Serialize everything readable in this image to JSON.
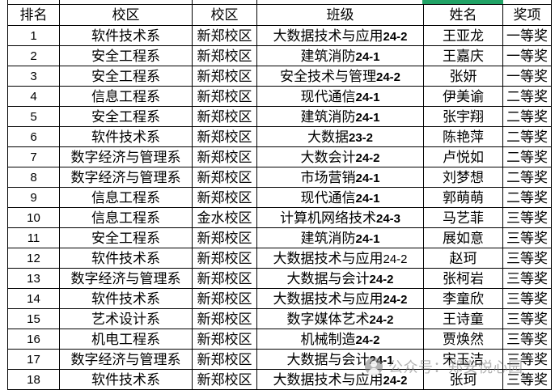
{
  "selection": {
    "color": "#21a366"
  },
  "table": {
    "headers": [
      "排名",
      "校区",
      "校区",
      "班级",
      "姓名",
      "奖项"
    ],
    "rows": [
      {
        "rank": "1",
        "dept": "软件技术系",
        "campus": "新郑校区",
        "class_name": "大数据技术与应用24-2",
        "name": "王亚龙",
        "award": "一等奖",
        "bold_digits": true
      },
      {
        "rank": "2",
        "dept": "安全工程系",
        "campus": "新郑校区",
        "class_name": "建筑消防24-1",
        "name": "王嘉庆",
        "award": "一等奖",
        "bold_digits": true
      },
      {
        "rank": "3",
        "dept": "安全工程系",
        "campus": "新郑校区",
        "class_name": "安全技术与管理24-2",
        "name": "张妍",
        "award": "一等奖",
        "bold_digits": true
      },
      {
        "rank": "4",
        "dept": "信息工程系",
        "campus": "新郑校区",
        "class_name": "现代通信24-1",
        "name": "伊美谕",
        "award": "二等奖",
        "bold_digits": true
      },
      {
        "rank": "5",
        "dept": "安全工程系",
        "campus": "新郑校区",
        "class_name": "建筑消防24-1",
        "name": "张宇翔",
        "award": "二等奖",
        "bold_digits": true
      },
      {
        "rank": "6",
        "dept": "软件技术系",
        "campus": "新郑校区",
        "class_name": "大数据23-2",
        "name": "陈艳萍",
        "award": "二等奖",
        "bold_digits": true
      },
      {
        "rank": "7",
        "dept": "数字经济与管理系",
        "campus": "新郑校区",
        "class_name": "大数会计24-2",
        "name": "卢悦如",
        "award": "二等奖",
        "bold_digits": true
      },
      {
        "rank": "8",
        "dept": "数字经济与管理系",
        "campus": "新郑校区",
        "class_name": "市场营销24-1",
        "name": "刘梦想",
        "award": "二等奖",
        "bold_digits": true
      },
      {
        "rank": "9",
        "dept": "信息工程系",
        "campus": "新郑校区",
        "class_name": "现代通信24-1",
        "name": "郭萌萌",
        "award": "二等奖",
        "bold_digits": true
      },
      {
        "rank": "10",
        "dept": "信息工程系",
        "campus": "金水校区",
        "class_name": "计算机网络技术24-3",
        "name": "马艺菲",
        "award": "三等奖",
        "bold_digits": true
      },
      {
        "rank": "11",
        "dept": "安全工程系",
        "campus": "新郑校区",
        "class_name": "建筑消防24-1",
        "name": "展如意",
        "award": "三等奖",
        "bold_digits": true
      },
      {
        "rank": "12",
        "dept": "软件技术系",
        "campus": "新郑校区",
        "class_name": "大数据技术与应用24-2",
        "name": "赵珂",
        "award": "三等奖",
        "bold_digits": false
      },
      {
        "rank": "13",
        "dept": "数字经济与管理系",
        "campus": "新郑校区",
        "class_name": "大数据与会计24-2",
        "name": "张柯岩",
        "award": "三等奖",
        "bold_digits": true
      },
      {
        "rank": "14",
        "dept": "软件技术系",
        "campus": "新郑校区",
        "class_name": "大数据技术与应用24-2",
        "name": "李童欣",
        "award": "三等奖",
        "bold_digits": true
      },
      {
        "rank": "15",
        "dept": "艺术设计系",
        "campus": "新郑校区",
        "class_name": "数字媒体艺术24-2",
        "name": "王诗童",
        "award": "三等奖",
        "bold_digits": true
      },
      {
        "rank": "16",
        "dept": "机电工程系",
        "campus": "新郑校区",
        "class_name": "机械制造24-2",
        "name": "贾焕然",
        "award": "三等奖",
        "bold_digits": true
      },
      {
        "rank": "17",
        "dept": "数字经济与管理系",
        "campus": "新郑校区",
        "class_name": "大数据与会计24-1",
        "name": "宋玉洁",
        "award": "三等奖",
        "bold_digits": true
      },
      {
        "rank": "18",
        "dept": "软件技术系",
        "campus": "新郑校区",
        "class_name": "大数据技术与应用24-2",
        "name": "张珂",
        "award": "三等奖",
        "bold_digits": true
      }
    ]
  },
  "watermark": {
    "icon": "wechat-official-account-icon",
    "text": "公众号：郑安悦心园"
  }
}
